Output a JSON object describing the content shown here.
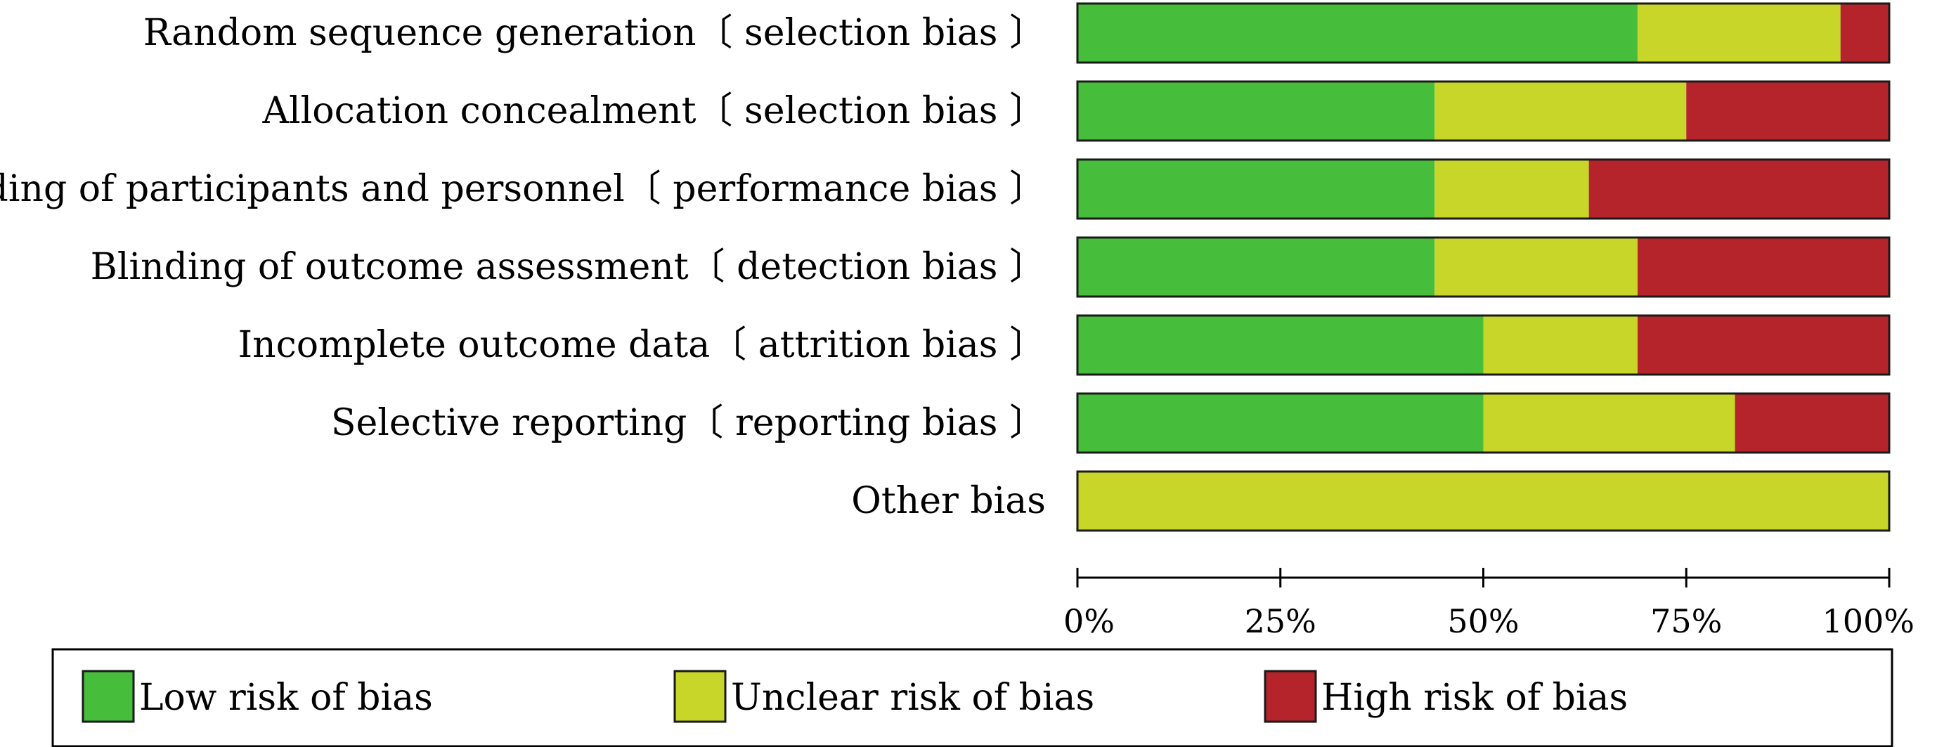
{
  "chart_data": {
    "type": "bar",
    "orientation": "horizontal",
    "stacked": true,
    "percent": true,
    "categories": [
      "Random sequence generation〔 selection bias 〕",
      "Allocation concealment〔 selection bias 〕",
      "Blinding of participants and personnel〔 performance bias 〕",
      "Blinding of outcome assessment〔 detection bias 〕",
      "Incomplete outcome data〔 attrition bias 〕",
      "Selective reporting〔 reporting bias 〕",
      "Other bias"
    ],
    "series": [
      {
        "name": "Low risk of bias",
        "color": "#46bd3b",
        "values": [
          69,
          44,
          44,
          44,
          50,
          50,
          0
        ]
      },
      {
        "name": "Unclear risk of bias",
        "color": "#c8d629",
        "values": [
          25,
          31,
          19,
          25,
          19,
          31,
          100
        ]
      },
      {
        "name": "High risk of bias",
        "color": "#b5242b",
        "values": [
          6,
          25,
          37,
          31,
          31,
          19,
          0
        ]
      }
    ],
    "xlim": [
      0,
      100
    ],
    "xticks": [
      "0%",
      "25%",
      "50%",
      "75%",
      "100%"
    ],
    "xtick_values": [
      0,
      25,
      50,
      75,
      100
    ],
    "legend_position": "bottom",
    "grid": false
  }
}
